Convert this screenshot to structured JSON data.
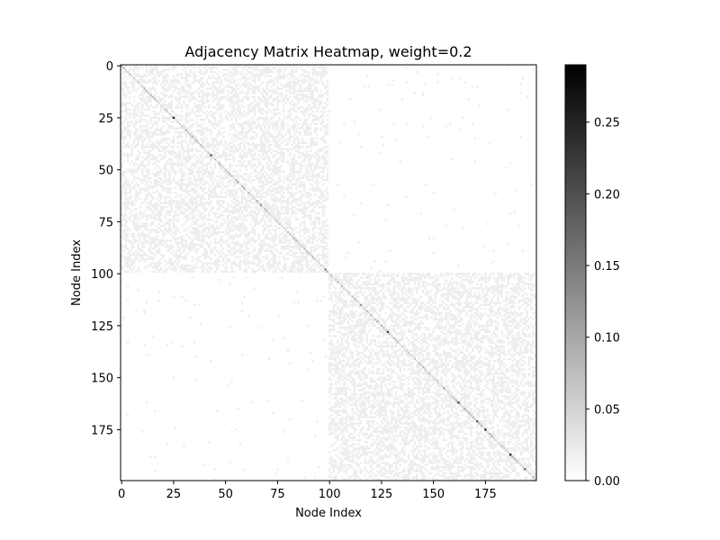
{
  "chart_data": {
    "type": "heatmap",
    "title": "Adjacency Matrix Heatmap, weight=0.2",
    "xlabel": "Node Index",
    "ylabel": "Node Index",
    "n_nodes": 200,
    "x_ticks": [
      0,
      25,
      50,
      75,
      100,
      125,
      150,
      175
    ],
    "y_ticks": [
      0,
      25,
      50,
      75,
      100,
      125,
      150,
      175
    ],
    "colormap": "Greys",
    "colorbar": {
      "range": [
        0.0,
        0.29
      ],
      "ticks": [
        0.0,
        0.05,
        0.1,
        0.15,
        0.2,
        0.25
      ],
      "tick_labels": [
        "0.00",
        "0.05",
        "0.10",
        "0.15",
        "0.20",
        "0.25"
      ]
    },
    "blocks": [
      {
        "rows": [
          0,
          99
        ],
        "cols": [
          0,
          99
        ],
        "typical_value": 0.02,
        "density": 0.5
      },
      {
        "rows": [
          100,
          199
        ],
        "cols": [
          100,
          199
        ],
        "typical_value": 0.02,
        "density": 0.5
      },
      {
        "rows": [
          0,
          99
        ],
        "cols": [
          100,
          199
        ],
        "typical_value": 0.02,
        "density": 0.01
      },
      {
        "rows": [
          100,
          199
        ],
        "cols": [
          0,
          99
        ],
        "typical_value": 0.02,
        "density": 0.01
      }
    ],
    "diagonal": {
      "typical_value": 0.05
    },
    "highlighted_diagonal": [
      {
        "node": 25,
        "value": 0.25
      },
      {
        "node": 43,
        "value": 0.2
      },
      {
        "node": 56,
        "value": 0.1
      },
      {
        "node": 59,
        "value": 0.1
      },
      {
        "node": 67,
        "value": 0.12
      },
      {
        "node": 98,
        "value": 0.15
      },
      {
        "node": 115,
        "value": 0.12
      },
      {
        "node": 128,
        "value": 0.22
      },
      {
        "node": 155,
        "value": 0.12
      },
      {
        "node": 162,
        "value": 0.22
      },
      {
        "node": 171,
        "value": 0.2
      },
      {
        "node": 175,
        "value": 0.25
      },
      {
        "node": 187,
        "value": 0.28
      },
      {
        "node": 194,
        "value": 0.18
      }
    ]
  }
}
